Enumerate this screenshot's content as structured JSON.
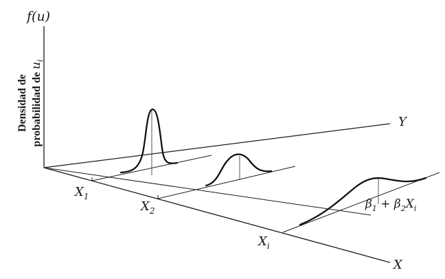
{
  "labels": {
    "f_axis": "f(u)",
    "y_axis": "Y",
    "x_axis": "X",
    "x1": {
      "base": "X",
      "sub": "1"
    },
    "x2": {
      "base": "X",
      "sub": "2"
    },
    "xi": {
      "base": "X",
      "sub": "i"
    },
    "regression_line": {
      "beta1": "β",
      "sub1": "1",
      "plus": " + ",
      "beta2": "β",
      "sub2": "2",
      "x": "X",
      "subi": "i"
    },
    "density_label_line1": "Densidad de",
    "density_label_line2": "probabilidad de",
    "density_label_var": "u",
    "density_label_var_sub": "i"
  },
  "colors": {
    "ink": "#1a1a1a",
    "background": "#ffffff"
  }
}
